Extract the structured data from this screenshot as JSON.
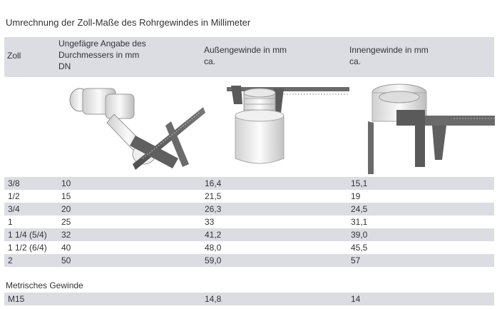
{
  "caption": "Umrechnung der Zoll-Maße des Rohrgewindes in Millimeter",
  "headers": {
    "zoll": "Zoll",
    "dn_line1": "Ungefägre Angabe des",
    "dn_line2": "Durchmessers in mm",
    "dn_line3": "DN",
    "aussen_line1": "Außengewinde in mm",
    "aussen_line2": "ca.",
    "innen_line1": "Innengewinde in mm",
    "innen_line2": "ca."
  },
  "images": {
    "col2": "caliper-measuring-fitting-icon",
    "col3": "caliper-measuring-external-thread-icon",
    "col4": "caliper-measuring-internal-thread-icon"
  },
  "rows": [
    {
      "zoll": "3/8",
      "dn": "10",
      "aussen": "16,4",
      "innen": "15,1"
    },
    {
      "zoll": "1/2",
      "dn": "15",
      "aussen": "21,5",
      "innen": "19"
    },
    {
      "zoll": "3/4",
      "dn": "20",
      "aussen": "26,3",
      "innen": "24,5"
    },
    {
      "zoll": "1",
      "dn": "25",
      "aussen": "33",
      "innen": "31,1"
    },
    {
      "zoll": "1 1/4 (5/4)",
      "dn": "32",
      "aussen": "41,2",
      "innen": "39,0"
    },
    {
      "zoll": "1 1/2 (6/4)",
      "dn": "40",
      "aussen": "48,0",
      "innen": "45,5"
    },
    {
      "zoll": "2",
      "dn": "50",
      "aussen": "59,0",
      "innen": "57"
    }
  ],
  "metric": {
    "label": "Metrisches Gewinde",
    "row": {
      "zoll": "M15",
      "dn": "",
      "aussen": "14,8",
      "innen": "14"
    }
  },
  "colors": {
    "shade": "#dcdde3",
    "text": "#333333"
  }
}
